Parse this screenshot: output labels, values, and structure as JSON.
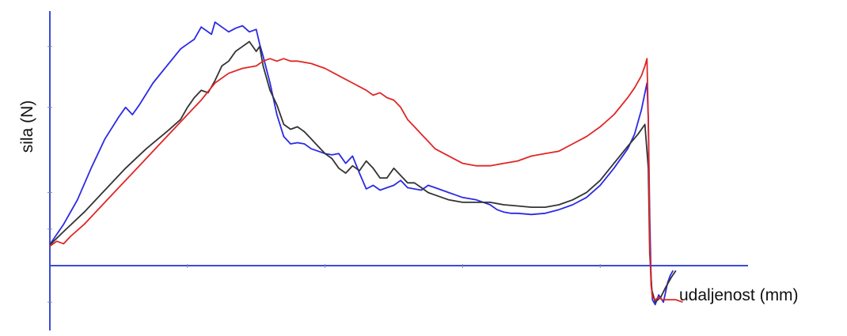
{
  "chart_data": {
    "type": "line",
    "title": "",
    "xlabel": "udaljenost (mm)",
    "ylabel": "sila (N)",
    "xlim": [
      0,
      100
    ],
    "ylim": [
      -20,
      100
    ],
    "grid": false,
    "legend": "none",
    "axis_color": "#3a4bd8",
    "series": [
      {
        "color": "#2a2ae6",
        "points": [
          [
            0,
            8.7
          ],
          [
            2,
            17
          ],
          [
            4,
            27
          ],
          [
            6,
            40
          ],
          [
            8,
            52
          ],
          [
            10,
            61
          ],
          [
            11,
            65
          ],
          [
            12,
            62
          ],
          [
            13,
            66
          ],
          [
            15,
            75
          ],
          [
            17,
            82
          ],
          [
            19,
            89
          ],
          [
            20,
            91
          ],
          [
            21,
            93
          ],
          [
            22,
            98
          ],
          [
            23.5,
            95
          ],
          [
            24,
            100
          ],
          [
            25,
            98
          ],
          [
            26,
            96
          ],
          [
            27,
            97.5
          ],
          [
            28,
            98.5
          ],
          [
            29,
            96
          ],
          [
            30,
            97
          ],
          [
            30.5,
            91
          ],
          [
            31,
            86
          ],
          [
            32,
            75
          ],
          [
            33,
            62
          ],
          [
            34,
            53
          ],
          [
            35,
            50
          ],
          [
            36,
            50.5
          ],
          [
            37,
            50
          ],
          [
            38,
            48
          ],
          [
            39,
            47
          ],
          [
            40,
            46
          ],
          [
            41,
            45.5
          ],
          [
            42,
            46
          ],
          [
            43,
            42
          ],
          [
            44,
            45
          ],
          [
            45,
            38
          ],
          [
            46,
            31.5
          ],
          [
            47,
            33
          ],
          [
            48,
            31
          ],
          [
            49,
            32
          ],
          [
            50,
            33
          ],
          [
            51,
            35
          ],
          [
            52,
            32
          ],
          [
            53,
            31.5
          ],
          [
            54,
            31
          ],
          [
            55,
            33
          ],
          [
            56,
            32
          ],
          [
            57,
            31
          ],
          [
            58,
            30
          ],
          [
            59,
            29
          ],
          [
            60,
            28
          ],
          [
            61,
            27.5
          ],
          [
            62,
            27
          ],
          [
            63,
            26
          ],
          [
            64,
            25
          ],
          [
            65,
            23
          ],
          [
            66,
            22
          ],
          [
            67,
            21.5
          ],
          [
            68,
            21.5
          ],
          [
            70,
            21
          ],
          [
            72,
            21.5
          ],
          [
            74,
            23
          ],
          [
            76,
            25
          ],
          [
            78,
            28
          ],
          [
            80,
            33
          ],
          [
            82,
            40
          ],
          [
            84,
            48
          ],
          [
            85,
            54
          ],
          [
            86,
            64
          ],
          [
            86.8,
            75
          ],
          [
            87,
            60
          ],
          [
            87.2,
            20
          ],
          [
            87.4,
            -5
          ],
          [
            87.6,
            -14
          ],
          [
            88,
            -16
          ],
          [
            88.5,
            -12
          ],
          [
            89.2,
            -15
          ],
          [
            89.8,
            -7
          ],
          [
            90.2,
            -4
          ],
          [
            90.6,
            -2
          ]
        ]
      },
      {
        "color": "#333333",
        "points": [
          [
            0,
            8.5
          ],
          [
            2,
            14
          ],
          [
            5,
            22
          ],
          [
            8,
            31
          ],
          [
            11,
            40
          ],
          [
            14,
            48
          ],
          [
            17,
            55
          ],
          [
            19,
            60
          ],
          [
            20,
            65
          ],
          [
            21,
            69
          ],
          [
            22,
            72
          ],
          [
            23,
            71
          ],
          [
            24,
            76
          ],
          [
            25,
            82
          ],
          [
            26,
            84
          ],
          [
            27,
            88
          ],
          [
            28,
            90
          ],
          [
            29,
            92
          ],
          [
            30,
            88
          ],
          [
            30.5,
            90
          ],
          [
            31,
            82
          ],
          [
            32,
            72
          ],
          [
            33,
            66
          ],
          [
            34,
            58
          ],
          [
            35,
            56
          ],
          [
            36,
            57
          ],
          [
            37,
            55
          ],
          [
            38,
            52
          ],
          [
            39,
            49
          ],
          [
            40,
            46
          ],
          [
            41,
            44
          ],
          [
            42,
            40
          ],
          [
            43,
            38
          ],
          [
            44,
            41
          ],
          [
            45,
            39
          ],
          [
            46,
            43
          ],
          [
            47,
            40
          ],
          [
            48,
            36
          ],
          [
            49,
            36
          ],
          [
            50,
            40
          ],
          [
            51,
            37
          ],
          [
            52,
            34
          ],
          [
            53,
            34
          ],
          [
            54,
            32
          ],
          [
            55,
            30
          ],
          [
            56,
            29
          ],
          [
            58,
            27
          ],
          [
            60,
            26
          ],
          [
            62,
            26
          ],
          [
            64,
            26
          ],
          [
            66,
            25
          ],
          [
            68,
            24.5
          ],
          [
            70,
            24
          ],
          [
            72,
            24
          ],
          [
            74,
            25
          ],
          [
            76,
            27
          ],
          [
            78,
            30
          ],
          [
            80,
            35
          ],
          [
            82,
            42
          ],
          [
            84,
            49
          ],
          [
            85.5,
            54
          ],
          [
            86.5,
            58
          ],
          [
            87,
            40
          ],
          [
            87.2,
            5
          ],
          [
            87.5,
            -10
          ],
          [
            88,
            -15
          ],
          [
            88.8,
            -13
          ],
          [
            89.5,
            -9
          ],
          [
            90.3,
            -5
          ],
          [
            91,
            -2
          ]
        ]
      },
      {
        "color": "#e02626",
        "points": [
          [
            0,
            8
          ],
          [
            1,
            10
          ],
          [
            2,
            9
          ],
          [
            3,
            12
          ],
          [
            5,
            17
          ],
          [
            8,
            26
          ],
          [
            10,
            32
          ],
          [
            12,
            38
          ],
          [
            14,
            44
          ],
          [
            16,
            50
          ],
          [
            18,
            56
          ],
          [
            20,
            62
          ],
          [
            22,
            68
          ],
          [
            24,
            75
          ],
          [
            26,
            79
          ],
          [
            28,
            81
          ],
          [
            30,
            82
          ],
          [
            31,
            84
          ],
          [
            32,
            85
          ],
          [
            33,
            84
          ],
          [
            34,
            85
          ],
          [
            35,
            84
          ],
          [
            36,
            84
          ],
          [
            38,
            83
          ],
          [
            40,
            81
          ],
          [
            42,
            78
          ],
          [
            44,
            75
          ],
          [
            46,
            72
          ],
          [
            47,
            70
          ],
          [
            48,
            71
          ],
          [
            49,
            69
          ],
          [
            50,
            68
          ],
          [
            51,
            65
          ],
          [
            52,
            60
          ],
          [
            53,
            57
          ],
          [
            54,
            54
          ],
          [
            55,
            51
          ],
          [
            56,
            48
          ],
          [
            58,
            45
          ],
          [
            60,
            42
          ],
          [
            62,
            41
          ],
          [
            64,
            41
          ],
          [
            66,
            42
          ],
          [
            68,
            43
          ],
          [
            70,
            45
          ],
          [
            72,
            46
          ],
          [
            74,
            47
          ],
          [
            76,
            50
          ],
          [
            78,
            53
          ],
          [
            80,
            57
          ],
          [
            82,
            62
          ],
          [
            84,
            69
          ],
          [
            85,
            73
          ],
          [
            86,
            78
          ],
          [
            86.5,
            82
          ],
          [
            86.8,
            85
          ],
          [
            87,
            60
          ],
          [
            87.2,
            10
          ],
          [
            87.4,
            -8
          ],
          [
            87.6,
            -13
          ],
          [
            88,
            -14
          ],
          [
            88.5,
            -13
          ],
          [
            89,
            -14
          ],
          [
            89.5,
            -14
          ],
          [
            90,
            -14
          ],
          [
            91,
            -14
          ],
          [
            92,
            -15
          ]
        ]
      }
    ]
  }
}
